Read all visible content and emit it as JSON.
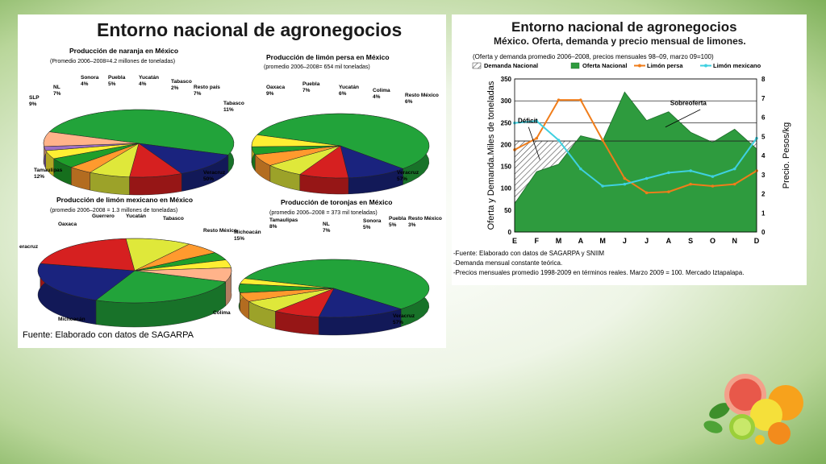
{
  "left": {
    "title": "Entorno nacional de agronegocios",
    "source": "Fuente: Elaborado con datos de SAGARPA"
  },
  "pies": [
    {
      "id": "naranja",
      "title": "Producción de naranja en México",
      "subtitle": "(Promedio 2006–2008=4.2 millones de toneladas)",
      "slices": [
        {
          "name": "Veracruz",
          "value": 50,
          "color": "#22a33a"
        },
        {
          "name": "Tamaulipas",
          "value": 12,
          "color": "#1a237e"
        },
        {
          "name": "SLP",
          "value": 9,
          "color": "#d62020"
        },
        {
          "name": "NL",
          "value": 7,
          "color": "#dfe83a"
        },
        {
          "name": "Sonora",
          "value": 4,
          "color": "#ff9a2e"
        },
        {
          "name": "Puebla",
          "value": 5,
          "color": "#1f9e2a"
        },
        {
          "name": "Yucatán",
          "value": 4,
          "color": "#ffee33"
        },
        {
          "name": "Tabasco",
          "value": 2,
          "color": "#9c6fc4"
        },
        {
          "name": "Resto país",
          "value": 7,
          "color": "#ffb38a"
        }
      ],
      "labels": [
        "Veracruz\n50%",
        "Tamaulipas\n12%",
        "SLP\n9%",
        "NL\n7%",
        "Sonora\n4%",
        "Puebla\n5%",
        "Yucatán\n4%",
        "Tabasco\n2%",
        "Resto país\n7%"
      ]
    },
    {
      "id": "limon-persa",
      "title": "Producción de limón persa en México",
      "subtitle": "(promedio 2006–2008= 654 mil toneladas)",
      "slices": [
        {
          "name": "Veracruz",
          "value": 57,
          "color": "#22a33a"
        },
        {
          "name": "Tabasco",
          "value": 11,
          "color": "#1a237e"
        },
        {
          "name": "Oaxaca",
          "value": 9,
          "color": "#d62020"
        },
        {
          "name": "Puebla",
          "value": 7,
          "color": "#dfe83a"
        },
        {
          "name": "Yucatán",
          "value": 6,
          "color": "#ff9a2e"
        },
        {
          "name": "Colima",
          "value": 4,
          "color": "#1f9e2a"
        },
        {
          "name": "Resto México",
          "value": 6,
          "color": "#ffee33"
        }
      ],
      "labels": [
        "Veracruz\n57%",
        "Tabasco\n11%",
        "Oaxaca\n9%",
        "Puebla\n7%",
        "Yucatán\n6%",
        "Colima\n4%",
        "Resto México\n6%"
      ]
    },
    {
      "id": "limon-mexicano",
      "title": "Producción de limón mexicano en México",
      "subtitle": "(promedio 2006–2008 = 1.3 millones de toneladas)",
      "slices": [
        {
          "name": "Colima",
          "value": 26,
          "color": "#22a33a"
        },
        {
          "name": "Michoacán",
          "value": 22,
          "color": "#1a237e"
        },
        {
          "name": "Veracruz",
          "value": 20,
          "color": "#d62020"
        },
        {
          "name": "Oaxaca",
          "value": 11,
          "color": "#dfe83a"
        },
        {
          "name": "Guerrero",
          "value": 6,
          "color": "#ff9a2e"
        },
        {
          "name": "Yucatán",
          "value": 4,
          "color": "#1f9e2a"
        },
        {
          "name": "Tabasco",
          "value": 4,
          "color": "#ffee33"
        },
        {
          "name": "Resto México",
          "value": 7,
          "color": "#ffb38a"
        }
      ],
      "labels": [
        "Colima",
        "Michoacán",
        "eracruz",
        "Oaxaca",
        "Guerrero",
        "Yucatán",
        "Tabasco",
        "Resto México"
      ]
    },
    {
      "id": "toronjas",
      "title": "Producción de toronjas en México",
      "subtitle": "(promedio 2006–2008 = 373 mil toneladas)",
      "slices": [
        {
          "name": "Veracruz",
          "value": 57,
          "color": "#22a33a"
        },
        {
          "name": "Michoacán",
          "value": 15,
          "color": "#1a237e"
        },
        {
          "name": "Tamaulipas",
          "value": 8,
          "color": "#d62020"
        },
        {
          "name": "NL",
          "value": 7,
          "color": "#dfe83a"
        },
        {
          "name": "Sonora",
          "value": 5,
          "color": "#ff9a2e"
        },
        {
          "name": "Puebla",
          "value": 5,
          "color": "#1f9e2a"
        },
        {
          "name": "Resto México",
          "value": 3,
          "color": "#ffee33"
        }
      ],
      "labels": [
        "Veracruz\n57%",
        "Michoacán\n15%",
        "Tamaulipas\n8%",
        "NL\n7%",
        "Sonora\n5%",
        "Puebla\n5%",
        "Resto México\n3%"
      ]
    }
  ],
  "right": {
    "title": "Entorno nacional de agronegocios",
    "subtitle": "México. Oferta, demanda y precio mensual de limones.",
    "note": "(Oferta y demanda promedio 2006–2008, precios mensuales 98–09, marzo 09=100)",
    "footnotes": [
      "-Fuente: Elaborado con datos de SAGARPA  y SNIIM",
      "-Demanda mensual constante teórica.",
      "-Precios mensuales promedio 1998-2009 en términos reales. Marzo 2009 = 100. Mercado Iztapalapa."
    ]
  },
  "chart_data": {
    "type": "area",
    "categories": [
      "E",
      "F",
      "M",
      "A",
      "M",
      "J",
      "J",
      "A",
      "S",
      "O",
      "N",
      "D"
    ],
    "ylabel": "Oferta y Demanda.Miles de toneladas",
    "y2label": "Precio. Pesos/kg",
    "ylim": [
      0,
      350
    ],
    "yticks": [
      0,
      50,
      100,
      150,
      200,
      250,
      300,
      350
    ],
    "y2lim": [
      0,
      8
    ],
    "y2ticks": [
      0,
      1,
      2,
      3,
      4,
      5,
      6,
      7,
      8
    ],
    "grid": true,
    "legend": "top",
    "annotations": [
      "Déficit",
      "Sobreoferta"
    ],
    "series": [
      {
        "name": "Demanda  Nacional",
        "axis": "left",
        "kind": "area-hatched",
        "color": "#555555",
        "values": [
          208,
          208,
          208,
          208,
          208,
          208,
          208,
          208,
          208,
          208,
          208,
          208
        ]
      },
      {
        "name": "Oferta Nacional",
        "axis": "left",
        "kind": "area",
        "color": "#2e9b3e",
        "values": [
          65,
          138,
          155,
          220,
          208,
          320,
          255,
          275,
          228,
          205,
          235,
          190
        ]
      },
      {
        "name": "Limón persa",
        "axis": "right",
        "kind": "line",
        "color": "#f07d1a",
        "values": [
          4.3,
          4.9,
          6.9,
          6.9,
          4.8,
          2.8,
          2.05,
          2.1,
          2.5,
          2.4,
          2.5,
          3.2
        ]
      },
      {
        "name": "Limón mexicano",
        "axis": "right",
        "kind": "line",
        "color": "#3fd0e0",
        "values": [
          5.7,
          5.8,
          4.8,
          3.3,
          2.4,
          2.5,
          2.8,
          3.1,
          3.2,
          2.9,
          3.3,
          4.9
        ]
      }
    ]
  }
}
